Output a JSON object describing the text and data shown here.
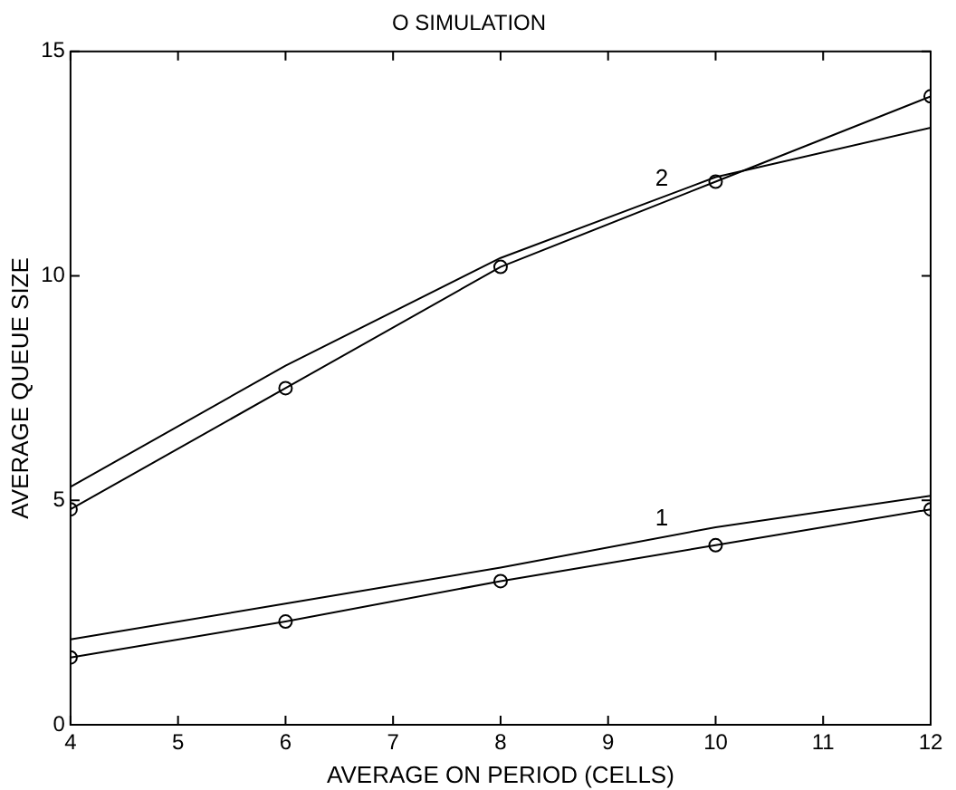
{
  "chart_data": {
    "type": "line",
    "title": "O SIMULATION",
    "xlabel": "AVERAGE ON PERIOD (CELLS)",
    "ylabel": "AVERAGE QUEUE SIZE",
    "x": [
      4,
      6,
      8,
      10,
      12
    ],
    "series": [
      {
        "color": "#000000",
        "marker": "circle",
        "values": [
          4.8,
          7.5,
          10.2,
          12.1,
          14.0
        ]
      },
      {
        "name": "2",
        "color": "#000000",
        "marker": "none",
        "values": [
          5.3,
          8.0,
          10.4,
          12.2,
          13.3
        ]
      },
      {
        "color": "#000000",
        "marker": "circle",
        "values": [
          1.5,
          2.3,
          3.2,
          4.0,
          4.8
        ]
      },
      {
        "name": "1",
        "color": "#000000",
        "marker": "none",
        "values": [
          1.9,
          2.7,
          3.5,
          4.4,
          5.1
        ]
      }
    ],
    "xlim": [
      4,
      12
    ],
    "xticks": [
      4,
      5,
      6,
      7,
      8,
      9,
      10,
      11,
      12
    ],
    "ylim": [
      0,
      15
    ],
    "yticks": [
      0,
      5,
      10,
      15
    ],
    "grid": false,
    "legend": false,
    "line_style": "solid"
  }
}
